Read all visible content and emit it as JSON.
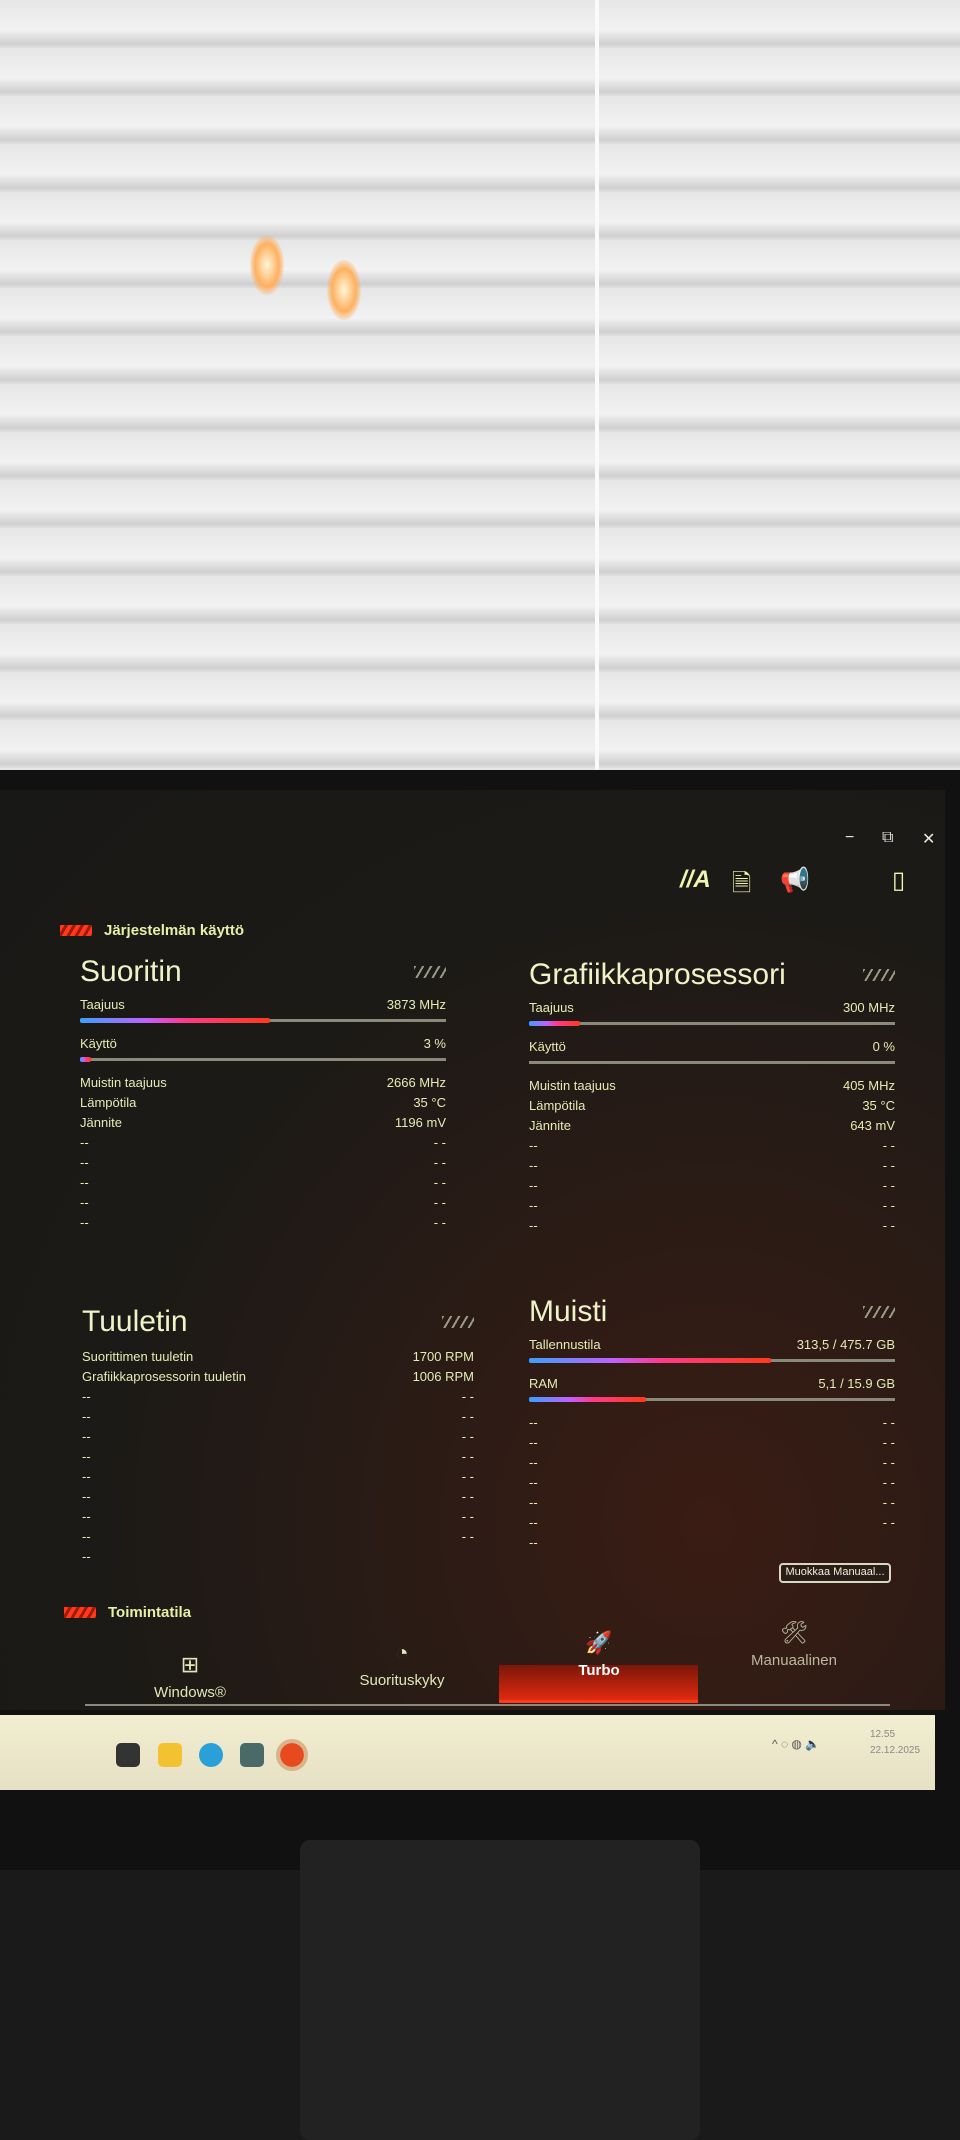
{
  "window": {
    "minimize": "−",
    "maximize": "⧉",
    "close": "✕"
  },
  "toolbar": {
    "icons": [
      "armoury-logo-icon",
      "document-user-icon",
      "megaphone-icon",
      "phone-icon"
    ]
  },
  "system_usage": {
    "heading": "Järjestelmän käyttö"
  },
  "cpu": {
    "title": "Suoritin",
    "freq_label": "Taajuus",
    "freq_value": "3873 MHz",
    "freq_fill_pct": 52,
    "usage_label": "Käyttö",
    "usage_value": "3 %",
    "usage_fill_pct": 3,
    "rows": [
      {
        "label": "Muistin taajuus",
        "value": "2666 MHz"
      },
      {
        "label": "Lämpötila",
        "value": "35 °C"
      },
      {
        "label": "Jännite",
        "value": "1196 mV"
      },
      {
        "label": "--",
        "value": "- -"
      },
      {
        "label": "--",
        "value": "- -"
      },
      {
        "label": "--",
        "value": "- -"
      },
      {
        "label": "--",
        "value": "- -"
      },
      {
        "label": "--",
        "value": "- -"
      }
    ]
  },
  "gpu": {
    "title": "Grafiikkaprosessori",
    "freq_label": "Taajuus",
    "freq_value": "300 MHz",
    "freq_fill_pct": 14,
    "usage_label": "Käyttö",
    "usage_value": "0 %",
    "usage_fill_pct": 0,
    "rows": [
      {
        "label": "Muistin taajuus",
        "value": "405 MHz"
      },
      {
        "label": "Lämpötila",
        "value": "35 °C"
      },
      {
        "label": "Jännite",
        "value": "643 mV"
      },
      {
        "label": "--",
        "value": "- -"
      },
      {
        "label": "--",
        "value": "- -"
      },
      {
        "label": "--",
        "value": "- -"
      },
      {
        "label": "--",
        "value": "- -"
      },
      {
        "label": "--",
        "value": "- -"
      }
    ]
  },
  "fan": {
    "title": "Tuuletin",
    "rows": [
      {
        "label": "Suorittimen tuuletin",
        "value": "1700 RPM"
      },
      {
        "label": "Grafiikkaprosessorin tuuletin",
        "value": "1006 RPM"
      },
      {
        "label": "--",
        "value": "- -"
      },
      {
        "label": "--",
        "value": "- -"
      },
      {
        "label": "--",
        "value": "- -"
      },
      {
        "label": "--",
        "value": "- -"
      },
      {
        "label": "--",
        "value": "- -"
      },
      {
        "label": "--",
        "value": "- -"
      },
      {
        "label": "--",
        "value": "- -"
      },
      {
        "label": "--",
        "value": "- -"
      },
      {
        "label": "--",
        "value": ""
      }
    ]
  },
  "memory": {
    "title": "Muisti",
    "storage_label": "Tallennustila",
    "storage_value": "313,5 / 475.7 GB",
    "storage_fill_pct": 66,
    "ram_label": "RAM",
    "ram_value": "5,1 / 15.9 GB",
    "ram_fill_pct": 32,
    "rows": [
      {
        "label": "--",
        "value": "- -"
      },
      {
        "label": "--",
        "value": "- -"
      },
      {
        "label": "--",
        "value": "- -"
      },
      {
        "label": "--",
        "value": "- -"
      },
      {
        "label": "--",
        "value": "- -"
      },
      {
        "label": "--",
        "value": "- -"
      },
      {
        "label": "--",
        "value": ""
      }
    ],
    "edit_button": "Muokkaa Manuaal..."
  },
  "mode": {
    "heading": "Toimintatila",
    "tabs": [
      {
        "label": "Windows®",
        "icon": "windows-grid-icon",
        "active": false
      },
      {
        "label": "Suorituskyky",
        "icon": "gauge-icon",
        "active": false
      },
      {
        "label": "Turbo",
        "icon": "rocket-icon",
        "active": true
      },
      {
        "label": "Manuaalinen",
        "icon": "tools-icon",
        "active": false
      }
    ]
  },
  "taskbar": {
    "time": "12.55",
    "date": "22.12.2025"
  },
  "colors": {
    "accent": "#ff3a1a",
    "text": "#e6f0a8"
  }
}
